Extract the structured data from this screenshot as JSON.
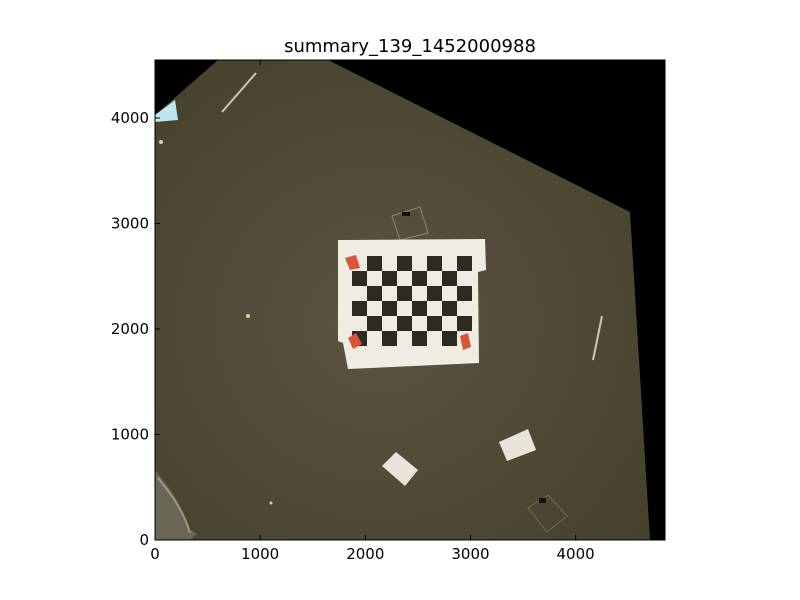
{
  "chart_data": {
    "type": "image",
    "title": "summary_139_1452000988",
    "xlabel": "",
    "ylabel": "",
    "xlim": [
      0,
      4850
    ],
    "ylim": [
      0,
      4550
    ],
    "x_ticks": [
      0,
      1000,
      2000,
      3000,
      4000
    ],
    "y_ticks": [
      0,
      1000,
      2000,
      3000,
      4000
    ],
    "x_tick_labels": [
      "0",
      "1000",
      "2000",
      "3000",
      "4000"
    ],
    "y_tick_labels": [
      "0",
      "1000",
      "2000",
      "3000",
      "4000"
    ],
    "image_description": "warped top-down photo of a checkerboard calibration target on a dark surface",
    "board": {
      "rows": 6,
      "cols": 8
    },
    "colors": {
      "background": "#000000",
      "surface": "#4a4630",
      "surface_light": "#5a5540",
      "paper": "#efece2",
      "square_dark": "#2d2a22",
      "marker": "#d8553a",
      "light_patch": "#bfe6ec"
    }
  }
}
